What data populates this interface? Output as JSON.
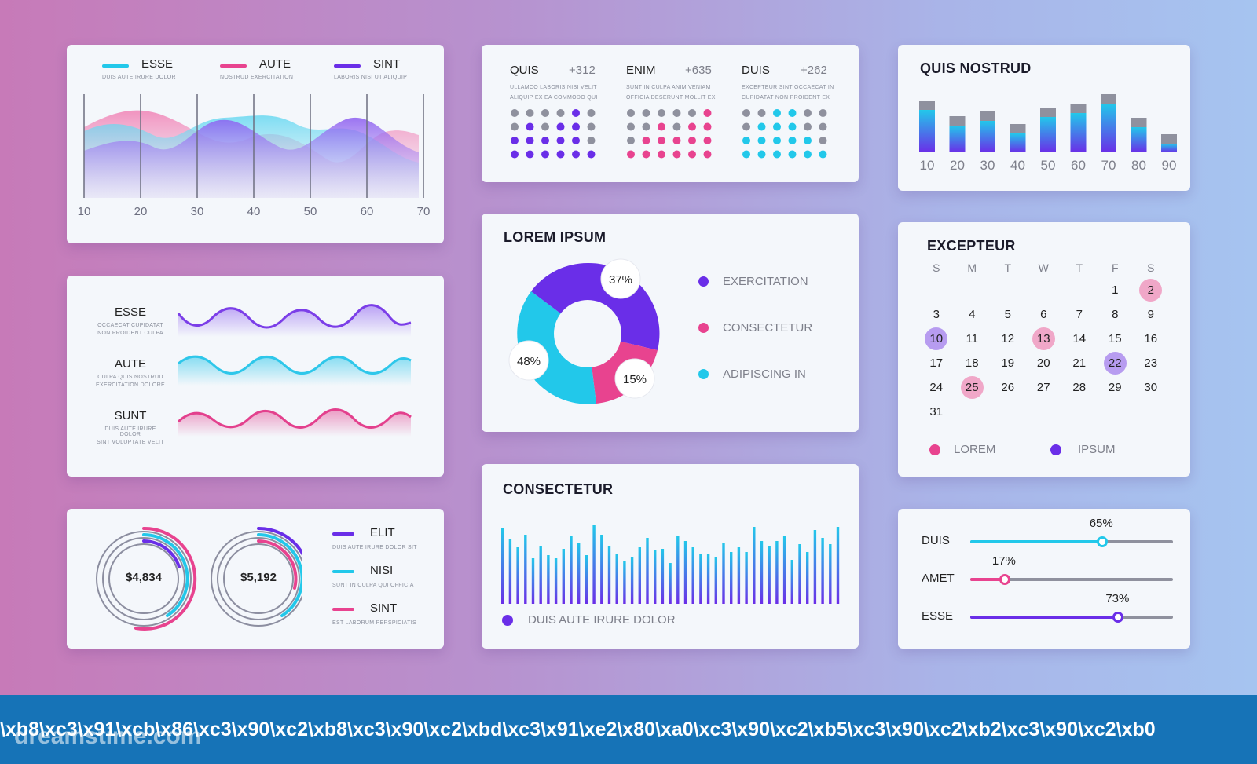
{
  "card_area": {
    "legend": [
      {
        "name": "ESSE",
        "sub": "DUIS AUTE IRURE DOLOR",
        "color": "#22c8ea"
      },
      {
        "name": "AUTE",
        "sub": "NOSTRUD EXERCITATION",
        "color": "#e8438f"
      },
      {
        "name": "SINT",
        "sub": "LABORIS NISI UT ALIQUIP",
        "color": "#6a2ee8"
      }
    ],
    "x_ticks": [
      "10",
      "20",
      "30",
      "40",
      "50",
      "60",
      "70"
    ]
  },
  "card_waves": {
    "rows": [
      {
        "name": "ESSE",
        "sub1": "OCCAECAT CUPIDATAT",
        "sub2": "NON PROIDENT CULPA",
        "color": "#7b3ee8"
      },
      {
        "name": "AUTE",
        "sub1": "CULPA QUIS NOSTRUD",
        "sub2": "EXERCITATION DOLORE",
        "color": "#2ec7ea"
      },
      {
        "name": "SUNT",
        "sub1": "DUIS AUTE IRURE DOLOR",
        "sub2": "SINT VOLUPTATE VELIT",
        "color": "#e3408d"
      }
    ]
  },
  "card_rings": {
    "ring1_value": "$4,834",
    "ring2_value": "$5,192",
    "legend": [
      {
        "name": "ELIT",
        "sub": "DUIS AUTE IRURE DOLOR SIT",
        "color": "#6a2ee8"
      },
      {
        "name": "NISI",
        "sub": "SUNT IN CULPA QUI OFFICIA",
        "color": "#22c8ea"
      },
      {
        "name": "SINT",
        "sub": "EST LABORUM PERSPICIATIS",
        "color": "#e8438f"
      }
    ]
  },
  "card_dots": {
    "groups": [
      {
        "name": "QUIS",
        "value": "+312",
        "sub1": "ULLAMCO LABORIS NISI VELIT",
        "sub2": "ALIQUIP EX EA COMMODO QUI",
        "color": "#6a2ee8"
      },
      {
        "name": "ENIM",
        "value": "+635",
        "sub1": "SUNT IN CULPA ANIM VENIAM",
        "sub2": "OFFICIA DESERUNT MOLLIT EX",
        "color": "#e8438f"
      },
      {
        "name": "DUIS",
        "value": "+262",
        "sub1": "EXCEPTEUR SINT OCCAECAT IN",
        "sub2": "CUPIDATAT NON PROIDENT EX",
        "color": "#22c8ea"
      }
    ]
  },
  "card_donut": {
    "title": "LOREM IPSUM",
    "slices": [
      {
        "label": "EXERCITATION",
        "percent_label": "37%",
        "color": "#6a2ee8"
      },
      {
        "label": "CONSECTETUR",
        "percent_label": "15%",
        "color": "#e8438f"
      },
      {
        "label": "ADIPISCING IN",
        "percent_label": "48%",
        "color": "#22c8ea"
      }
    ]
  },
  "card_bars2": {
    "title": "CONSECTETUR",
    "legend": "DUIS AUTE IRURE DOLOR",
    "legend_color": "#6a2ee8"
  },
  "card_quis": {
    "title": "QUIS NOSTRUD",
    "chart_data": {
      "type": "bar",
      "categories": [
        "10",
        "20",
        "30",
        "40",
        "50",
        "60",
        "70",
        "80",
        "90"
      ],
      "values": [
        66,
        46,
        52,
        36,
        57,
        62,
        74,
        44,
        23
      ]
    }
  },
  "card_calendar": {
    "title": "EXCEPTEUR",
    "weekdays": [
      "S",
      "M",
      "T",
      "W",
      "T",
      "F",
      "S"
    ],
    "first_weekday": 5,
    "days": 31,
    "lorem_days": [
      2,
      13,
      25
    ],
    "ipsum_days": [
      10,
      22
    ],
    "legend_lorem": "LOREM",
    "legend_ipsum": "IPSUM"
  },
  "card_sliders": {
    "rows": [
      {
        "name": "DUIS",
        "value_label": "65%",
        "value": 0.65,
        "color": "#22c8ea"
      },
      {
        "name": "AMET",
        "value_label": "17%",
        "value": 0.17,
        "color": "#e8438f"
      },
      {
        "name": "ESSE",
        "value_label": "73%",
        "value": 0.73,
        "color": "#6a2ee8"
      }
    ]
  },
  "watermark": {
    "bottom_text": "\\xb8\\xc3\\x91\\xcb\\x86\\xc3\\x90\\xc2\\xb8\\xc3\\x90\\xc2\\xbd\\xc3\\x91\\xe2\\x80\\xa0\\xc3\\x90\\xc2\\xb5\\xc3\\x90\\xc2\\xb2\\xc3\\x90\\xc2\\xb0",
    "logo": "dreamstime.com"
  }
}
